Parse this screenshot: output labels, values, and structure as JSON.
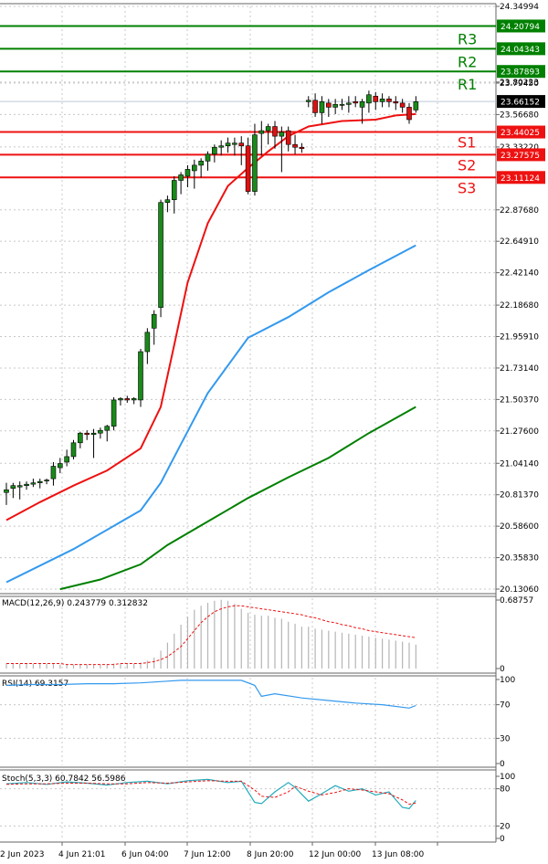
{
  "chart_data": [
    {
      "type": "candlestick",
      "panel": "price",
      "y_ticks": [
        "24.34994",
        "23.80223",
        "23.79450",
        "23.56680",
        "23.33220",
        "22.87680",
        "22.64910",
        "22.42140",
        "22.18680",
        "21.95910",
        "21.73140",
        "21.50370",
        "21.27600",
        "21.04140",
        "20.81370",
        "20.58600",
        "20.35830",
        "20.13060"
      ],
      "y_range": [
        20.1306,
        24.34994
      ],
      "current_price": "23.66152",
      "levels": [
        {
          "name": "R3",
          "value": "24.20794",
          "color": "#008000"
        },
        {
          "name": "R2",
          "value": "24.04343",
          "color": "#008000"
        },
        {
          "name": "R1",
          "value": "23.87893",
          "color": "#008000"
        },
        {
          "name": "S1",
          "value": "23.44025",
          "color": "#ee1111"
        },
        {
          "name": "S2",
          "value": "23.27575",
          "color": "#ee1111"
        },
        {
          "name": "S3",
          "value": "23.11124",
          "color": "#ee1111"
        }
      ],
      "x_labels": [
        "2 Jun 2023",
        "4 Jun 21:01",
        "6 Jun 04:00",
        "7 Jun 12:00",
        "8 Jun 20:00",
        "12 Jun 00:00",
        "13 Jun 08:00"
      ],
      "candles": [
        [
          20.83,
          20.9,
          20.74,
          20.85
        ],
        [
          20.86,
          20.9,
          20.79,
          20.88
        ],
        [
          20.87,
          20.91,
          20.78,
          20.88
        ],
        [
          20.88,
          20.91,
          20.85,
          20.89
        ],
        [
          20.89,
          20.93,
          20.87,
          20.9
        ],
        [
          20.9,
          20.93,
          20.86,
          20.91
        ],
        [
          20.92,
          20.93,
          20.89,
          20.92
        ],
        [
          20.93,
          21.05,
          20.88,
          21.02
        ],
        [
          21.01,
          21.08,
          20.97,
          21.04
        ],
        [
          21.05,
          21.14,
          21.02,
          21.09
        ],
        [
          21.09,
          21.21,
          21.07,
          21.19
        ],
        [
          21.19,
          21.27,
          21.15,
          21.26
        ],
        [
          21.26,
          21.28,
          21.21,
          21.25
        ],
        [
          21.25,
          21.29,
          21.08,
          21.26
        ],
        [
          21.26,
          21.3,
          21.22,
          21.28
        ],
        [
          21.28,
          21.32,
          21.2,
          21.31
        ],
        [
          21.31,
          21.52,
          21.28,
          21.5
        ],
        [
          21.5,
          21.52,
          21.46,
          21.51
        ],
        [
          21.51,
          21.53,
          21.48,
          21.5
        ],
        [
          21.5,
          21.52,
          21.47,
          21.51
        ],
        [
          21.5,
          21.87,
          21.45,
          21.85
        ],
        [
          21.85,
          22.02,
          21.76,
          21.99
        ],
        [
          22.02,
          22.15,
          21.9,
          22.12
        ],
        [
          22.17,
          22.95,
          22.1,
          22.93
        ],
        [
          22.93,
          22.98,
          22.86,
          22.95
        ],
        [
          22.95,
          23.12,
          22.85,
          23.09
        ],
        [
          23.09,
          23.15,
          22.99,
          23.13
        ],
        [
          23.12,
          23.2,
          23.04,
          23.17
        ],
        [
          23.16,
          23.24,
          23.03,
          23.2
        ],
        [
          23.2,
          23.25,
          23.11,
          23.23
        ],
        [
          23.23,
          23.3,
          23.16,
          23.28
        ],
        [
          23.28,
          23.35,
          23.22,
          23.33
        ],
        [
          23.33,
          23.38,
          23.27,
          23.34
        ],
        [
          23.34,
          23.4,
          23.29,
          23.36
        ],
        [
          23.35,
          23.4,
          23.27,
          23.36
        ],
        [
          23.36,
          23.41,
          23.2,
          23.34
        ],
        [
          23.34,
          23.4,
          22.99,
          23.01
        ],
        [
          23.01,
          23.5,
          22.98,
          23.42
        ],
        [
          23.43,
          23.52,
          23.27,
          23.45
        ],
        [
          23.45,
          23.5,
          23.35,
          23.48
        ],
        [
          23.48,
          23.52,
          23.32,
          23.41
        ],
        [
          23.41,
          23.48,
          23.15,
          23.44
        ],
        [
          23.45,
          23.48,
          23.3,
          23.35
        ],
        [
          23.35,
          23.42,
          23.28,
          23.33
        ],
        [
          23.33,
          23.36,
          23.29,
          23.32
        ],
        [
          23.66,
          23.7,
          23.62,
          23.67
        ],
        [
          23.67,
          23.72,
          23.55,
          23.58
        ],
        [
          23.58,
          23.7,
          23.5,
          23.66
        ],
        [
          23.65,
          23.68,
          23.55,
          23.62
        ],
        [
          23.62,
          23.68,
          23.57,
          23.64
        ],
        [
          23.64,
          23.68,
          23.6,
          23.64
        ],
        [
          23.64,
          23.7,
          23.58,
          23.65
        ],
        [
          23.66,
          23.7,
          23.62,
          23.65
        ],
        [
          23.62,
          23.68,
          23.5,
          23.66
        ],
        [
          23.65,
          23.74,
          23.58,
          23.71
        ],
        [
          23.7,
          23.73,
          23.6,
          23.66
        ],
        [
          23.66,
          23.72,
          23.62,
          23.68
        ],
        [
          23.68,
          23.7,
          23.62,
          23.66
        ],
        [
          23.66,
          23.7,
          23.6,
          23.65
        ],
        [
          23.65,
          23.68,
          23.58,
          23.62
        ],
        [
          23.62,
          23.65,
          23.5,
          23.53
        ],
        [
          23.6,
          23.7,
          23.58,
          23.66
        ]
      ],
      "moving_averages": [
        {
          "color": "#ee1111",
          "x": [
            0,
            5,
            10,
            15,
            20,
            23,
            25,
            27,
            30,
            33,
            36,
            39,
            42,
            45,
            50,
            55,
            58,
            61
          ],
          "y": [
            20.63,
            20.76,
            20.88,
            20.99,
            21.15,
            21.45,
            21.9,
            22.35,
            22.78,
            23.05,
            23.18,
            23.3,
            23.41,
            23.48,
            23.52,
            23.53,
            23.56,
            23.57
          ]
        },
        {
          "color": "#3399ee",
          "x": [
            0,
            10,
            20,
            23,
            26,
            30,
            36,
            42,
            48,
            54,
            61
          ],
          "y": [
            20.18,
            20.42,
            20.7,
            20.9,
            21.18,
            21.55,
            21.95,
            22.1,
            22.28,
            22.44,
            22.62
          ]
        },
        {
          "color": "#008000",
          "x": [
            8,
            14,
            20,
            24,
            30,
            36,
            42,
            48,
            54,
            61
          ],
          "y": [
            20.13,
            20.2,
            20.31,
            20.45,
            20.62,
            20.79,
            20.94,
            21.08,
            21.26,
            21.45
          ]
        }
      ]
    },
    {
      "type": "bar",
      "panel": "macd",
      "label": "MACD(12,26,9) 0.243779 0.312832",
      "y_ticks": [
        "0.68757",
        "0"
      ],
      "ylim": [
        0,
        0.68757
      ],
      "values": [
        0.05,
        0.05,
        0.05,
        0.05,
        0.05,
        0.05,
        0.05,
        0.05,
        0.04,
        0.04,
        0.04,
        0.04,
        0.04,
        0.04,
        0.04,
        0.04,
        0.05,
        0.05,
        0.05,
        0.05,
        0.06,
        0.08,
        0.11,
        0.18,
        0.26,
        0.35,
        0.44,
        0.52,
        0.59,
        0.63,
        0.66,
        0.68,
        0.69,
        0.68,
        0.65,
        0.6,
        0.56,
        0.54,
        0.53,
        0.53,
        0.51,
        0.5,
        0.47,
        0.45,
        0.42,
        0.42,
        0.4,
        0.39,
        0.38,
        0.37,
        0.36,
        0.35,
        0.34,
        0.33,
        0.32,
        0.31,
        0.3,
        0.29,
        0.28,
        0.27,
        0.26,
        0.24
      ],
      "signal": [
        0.05,
        0.05,
        0.05,
        0.05,
        0.05,
        0.05,
        0.05,
        0.05,
        0.05,
        0.04,
        0.04,
        0.04,
        0.04,
        0.04,
        0.04,
        0.04,
        0.04,
        0.05,
        0.05,
        0.05,
        0.05,
        0.06,
        0.07,
        0.09,
        0.12,
        0.17,
        0.22,
        0.3,
        0.38,
        0.46,
        0.52,
        0.57,
        0.6,
        0.62,
        0.63,
        0.63,
        0.62,
        0.61,
        0.6,
        0.59,
        0.58,
        0.57,
        0.56,
        0.55,
        0.54,
        0.52,
        0.51,
        0.49,
        0.47,
        0.46,
        0.44,
        0.43,
        0.41,
        0.4,
        0.38,
        0.37,
        0.36,
        0.35,
        0.34,
        0.33,
        0.32,
        0.31
      ]
    },
    {
      "type": "line",
      "panel": "rsi",
      "label": "RSI(14) 69.3157",
      "y_ticks": [
        "100",
        "70",
        "30",
        "0"
      ],
      "ylim": [
        0,
        100
      ],
      "x": [
        0,
        4,
        8,
        12,
        16,
        20,
        24,
        26,
        30,
        35,
        37,
        38,
        40,
        44,
        48,
        52,
        56,
        60,
        61
      ],
      "values": [
        93,
        94,
        94,
        95,
        95,
        96,
        98,
        99,
        99,
        99,
        93,
        80,
        83,
        78,
        75,
        72,
        70,
        66,
        69
      ]
    },
    {
      "type": "line",
      "panel": "stoch",
      "label": "Stoch(5,3,3) 60.7842 56.5986",
      "y_ticks": [
        "100",
        "80",
        "20",
        "0"
      ],
      "ylim": [
        0,
        100
      ],
      "x": [
        0,
        3,
        6,
        9,
        12,
        15,
        18,
        21,
        24,
        27,
        30,
        33,
        35,
        37,
        38,
        40,
        42,
        43,
        45,
        47,
        49,
        51,
        53,
        55,
        57,
        59,
        60,
        61
      ],
      "k": [
        88,
        90,
        87,
        91,
        89,
        86,
        90,
        92,
        88,
        93,
        95,
        90,
        92,
        58,
        56,
        75,
        90,
        82,
        60,
        72,
        85,
        76,
        80,
        70,
        75,
        50,
        48,
        61
      ],
      "d": [
        87,
        88,
        88,
        89,
        89,
        88,
        88,
        90,
        89,
        91,
        93,
        92,
        92,
        78,
        68,
        66,
        75,
        84,
        76,
        70,
        74,
        80,
        78,
        75,
        72,
        62,
        55,
        57
      ]
    }
  ]
}
